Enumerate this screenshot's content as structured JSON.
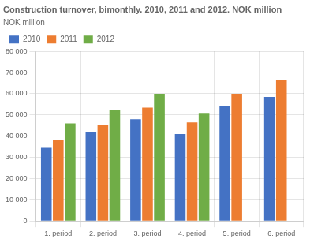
{
  "chart_data": {
    "type": "bar",
    "title": "Construction turnover, bimonthly. 2010, 2011 and 2012. NOK million",
    "ylabel": "NOK million",
    "categories": [
      "1. period",
      "2. period",
      "3. period",
      "4. period",
      "5. period",
      "6. period"
    ],
    "series": [
      {
        "name": "2010",
        "color": "#4472C4",
        "values": [
          34500,
          42000,
          48000,
          41000,
          54000,
          58500
        ]
      },
      {
        "name": "2011",
        "color": "#ED7D31",
        "values": [
          38000,
          45500,
          53500,
          46500,
          60000,
          66500
        ]
      },
      {
        "name": "2012",
        "color": "#70AD47",
        "values": [
          46000,
          52500,
          60000,
          51000,
          0,
          0
        ]
      }
    ],
    "ylim": [
      0,
      80000
    ],
    "yticks": [
      0,
      {
        "value": 10000,
        "label": "10 000"
      },
      {
        "value": 20000,
        "label": "20 000"
      },
      {
        "value": 30000,
        "label": "30 000"
      },
      {
        "value": 40000,
        "label": "40 000"
      },
      {
        "value": 50000,
        "label": "50 000"
      },
      {
        "value": 60000,
        "label": "60 000"
      },
      {
        "value": 70000,
        "label": "70 000"
      },
      {
        "value": 80000,
        "label": "80 000"
      }
    ],
    "grid": true,
    "legend": "upper left"
  }
}
